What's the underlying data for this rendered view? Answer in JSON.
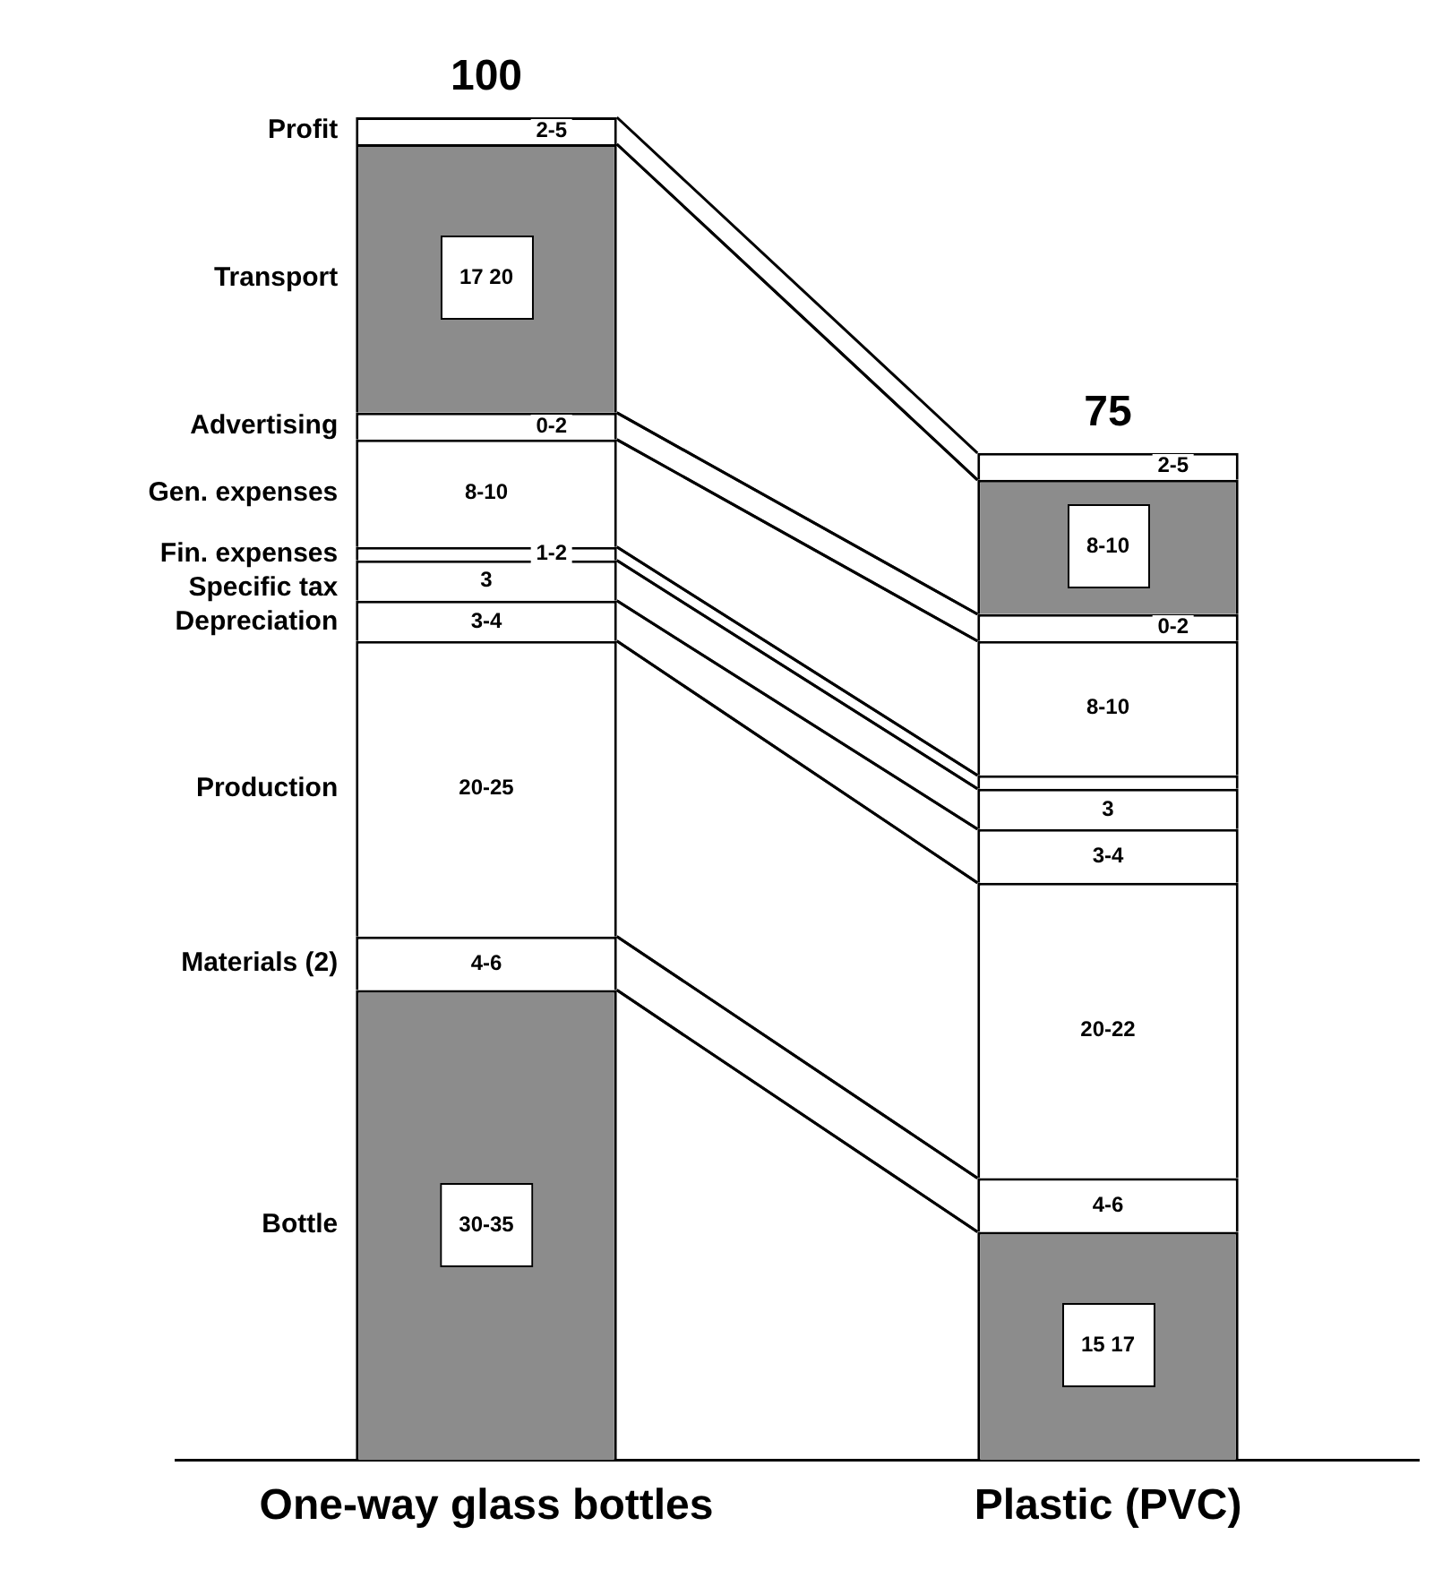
{
  "chart_data": {
    "type": "bar",
    "stacked": true,
    "categories": [
      "One-way glass bottles",
      "Plastic (PVC)"
    ],
    "series": [
      {
        "name": "Bottle",
        "color": "#8c8c8c",
        "values": [
          35,
          17
        ],
        "value_labels": [
          "30-35",
          "15 17"
        ]
      },
      {
        "name": "Materials (2)",
        "color": "#ffffff",
        "values": [
          4,
          4
        ],
        "value_labels": [
          "4-6",
          "4-6"
        ]
      },
      {
        "name": "Production",
        "color": "#ffffff",
        "values": [
          22,
          22
        ],
        "value_labels": [
          "20-25",
          "20-22"
        ]
      },
      {
        "name": "Depreciation",
        "color": "#ffffff",
        "values": [
          3,
          4
        ],
        "value_labels": [
          "3-4",
          "3-4"
        ]
      },
      {
        "name": "Specific tax",
        "color": "#ffffff",
        "values": [
          3,
          3
        ],
        "value_labels": [
          "3",
          "3"
        ]
      },
      {
        "name": "Fin. expenses",
        "color": "#ffffff",
        "values": [
          1,
          1
        ],
        "value_labels": [
          "1-2",
          null
        ]
      },
      {
        "name": "Gen. expenses",
        "color": "#ffffff",
        "values": [
          8,
          10
        ],
        "value_labels": [
          "8-10",
          "8-10"
        ]
      },
      {
        "name": "Advertising",
        "color": "#ffffff",
        "values": [
          2,
          2
        ],
        "value_labels": [
          "0-2",
          "0-2"
        ]
      },
      {
        "name": "Transport",
        "color": "#8c8c8c",
        "values": [
          20,
          10
        ],
        "value_labels": [
          "17 20",
          "8-10"
        ]
      },
      {
        "name": "Profit",
        "color": "#ffffff",
        "values": [
          2,
          2
        ],
        "value_labels": [
          "2-5",
          "2-5"
        ]
      }
    ],
    "totals": [
      "100",
      "75"
    ],
    "legend": false,
    "grid": false
  }
}
